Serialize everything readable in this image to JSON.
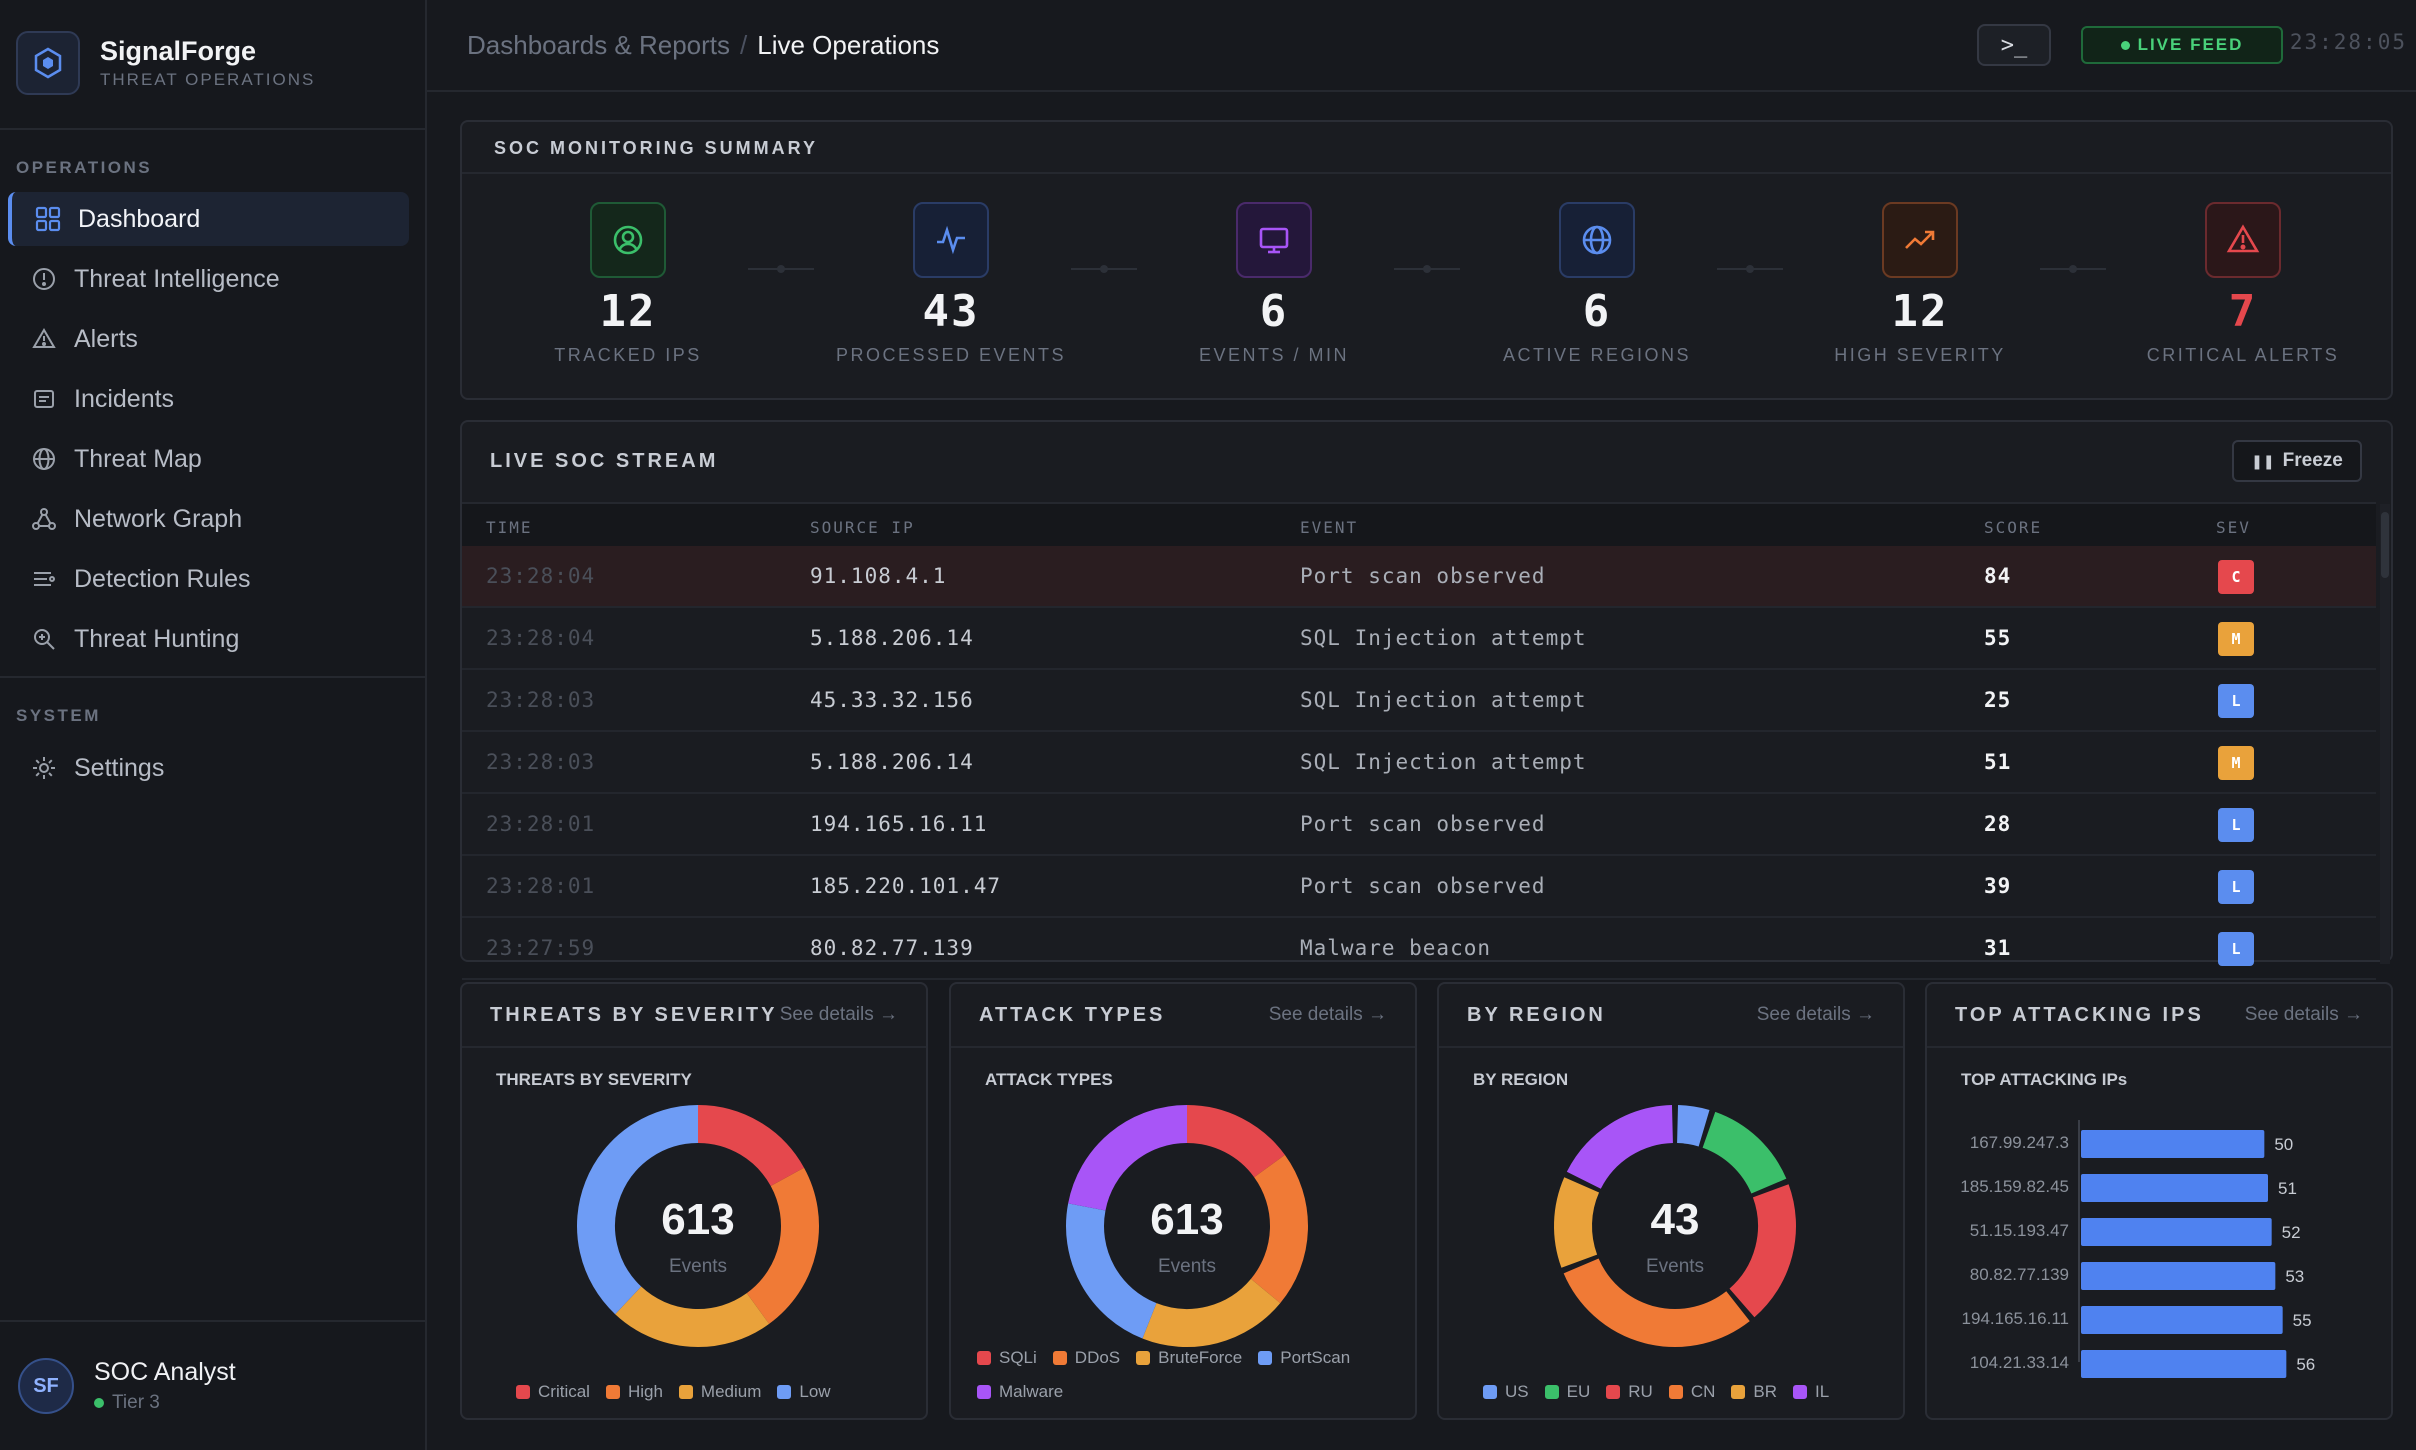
{
  "app": {
    "name": "SignalForge",
    "subtitle": "THREAT OPERATIONS"
  },
  "sidebar": {
    "operations_label": "OPERATIONS",
    "system_label": "SYSTEM",
    "items": [
      {
        "label": "Dashboard",
        "icon": "grid-icon",
        "active": true
      },
      {
        "label": "Threat Intelligence",
        "icon": "info-circle-icon"
      },
      {
        "label": "Alerts",
        "icon": "warning-triangle-icon"
      },
      {
        "label": "Incidents",
        "icon": "document-icon"
      },
      {
        "label": "Threat Map",
        "icon": "globe-icon"
      },
      {
        "label": "Network Graph",
        "icon": "network-icon"
      },
      {
        "label": "Detection Rules",
        "icon": "rules-list-icon"
      },
      {
        "label": "Threat Hunting",
        "icon": "magnifier-icon"
      }
    ],
    "system_items": [
      {
        "label": "Settings",
        "icon": "gear-icon"
      }
    ],
    "user": {
      "initials": "SF",
      "name": "SOC Analyst",
      "tier": "Tier 3",
      "status_color": "#3bbf6a"
    }
  },
  "topbar": {
    "breadcrumb_parent": "Dashboards & Reports",
    "breadcrumb_sep": "/",
    "breadcrumb_current": "Live Operations",
    "terminal_label": ">_",
    "live_label": "LIVE FEED",
    "clock": "23:28:05"
  },
  "summary": {
    "title": "SOC MONITORING SUMMARY",
    "stats": [
      {
        "value": "12",
        "label": "TRACKED IPS",
        "icon": "user-circle-icon",
        "color": "#3bbf6a"
      },
      {
        "value": "43",
        "label": "PROCESSED EVENTS",
        "icon": "pulse-icon",
        "color": "#5b8def"
      },
      {
        "value": "6",
        "label": "EVENTS / MIN",
        "icon": "monitor-icon",
        "color": "#a855f7"
      },
      {
        "value": "6",
        "label": "ACTIVE REGIONS",
        "icon": "globe-icon",
        "color": "#5b8def"
      },
      {
        "value": "12",
        "label": "HIGH SEVERITY",
        "icon": "trend-up-icon",
        "color": "#f07a36"
      },
      {
        "value": "7",
        "label": "CRITICAL ALERTS",
        "icon": "alert-triangle-icon",
        "color": "#e5484d"
      }
    ]
  },
  "stream": {
    "title": "LIVE SOC STREAM",
    "freeze_label": "Freeze",
    "columns": [
      "TIME",
      "SOURCE IP",
      "EVENT",
      "SCORE",
      "SEV"
    ],
    "rows": [
      {
        "time": "23:28:04",
        "ip": "91.108.4.1",
        "event": "Port scan observed",
        "score": "84",
        "sev": "C"
      },
      {
        "time": "23:28:04",
        "ip": "5.188.206.14",
        "event": "SQL Injection attempt",
        "score": "55",
        "sev": "M"
      },
      {
        "time": "23:28:03",
        "ip": "45.33.32.156",
        "event": "SQL Injection attempt",
        "score": "25",
        "sev": "L"
      },
      {
        "time": "23:28:03",
        "ip": "5.188.206.14",
        "event": "SQL Injection attempt",
        "score": "51",
        "sev": "M"
      },
      {
        "time": "23:28:01",
        "ip": "194.165.16.11",
        "event": "Port scan observed",
        "score": "28",
        "sev": "L"
      },
      {
        "time": "23:28:01",
        "ip": "185.220.101.47",
        "event": "Port scan observed",
        "score": "39",
        "sev": "L"
      },
      {
        "time": "23:27:59",
        "ip": "80.82.77.139",
        "event": "Malware beacon",
        "score": "31",
        "sev": "L"
      }
    ],
    "sev_colors": {
      "C": "#e5484d",
      "M": "#e9a23b",
      "L": "#5b8def"
    }
  },
  "cards": {
    "see_details": "See details →",
    "severity": {
      "header": "THREATS BY SEVERITY",
      "chart_title": "THREATS BY SEVERITY",
      "center_value": "613",
      "center_label": "Events"
    },
    "attack": {
      "header": "ATTACK TYPES",
      "chart_title": "ATTACK TYPES",
      "center_value": "613",
      "center_label": "Events"
    },
    "region": {
      "header": "BY REGION",
      "chart_title": "BY REGION",
      "center_value": "43",
      "center_label": "Events"
    },
    "top_ips": {
      "header": "TOP ATTACKING IPS",
      "chart_title": "TOP ATTACKING IPs"
    }
  },
  "chart_data": [
    {
      "type": "pie",
      "title": "THREATS BY SEVERITY",
      "categories": [
        "Critical",
        "High",
        "Medium",
        "Low"
      ],
      "values": [
        0.17,
        0.23,
        0.22,
        0.38
      ],
      "colors": [
        "#e5484d",
        "#f07a36",
        "#e9a23b",
        "#6e9cf5"
      ]
    },
    {
      "type": "pie",
      "title": "ATTACK TYPES",
      "categories": [
        "SQLi",
        "DDoS",
        "BruteForce",
        "PortScan",
        "Malware"
      ],
      "values": [
        0.15,
        0.21,
        0.2,
        0.22,
        0.22
      ],
      "colors": [
        "#e5484d",
        "#f07a36",
        "#e9a23b",
        "#6e9cf5",
        "#a855f7"
      ]
    },
    {
      "type": "pie",
      "title": "BY REGION",
      "categories": [
        "US",
        "EU",
        "RU",
        "CN",
        "BR",
        "IL"
      ],
      "values": [
        0.05,
        0.14,
        0.2,
        0.3,
        0.13,
        0.18
      ],
      "colors": [
        "#6e9cf5",
        "#3bbf6a",
        "#e5484d",
        "#f07a36",
        "#e9a23b",
        "#a855f7"
      ]
    },
    {
      "type": "bar",
      "title": "TOP ATTACKING IPs",
      "categories": [
        "167.99.247.3",
        "185.159.82.45",
        "51.15.193.47",
        "80.82.77.139",
        "194.165.16.11",
        "104.21.33.14"
      ],
      "values": [
        50,
        51,
        52,
        53,
        55,
        56
      ],
      "color": "#4f82f0"
    }
  ]
}
